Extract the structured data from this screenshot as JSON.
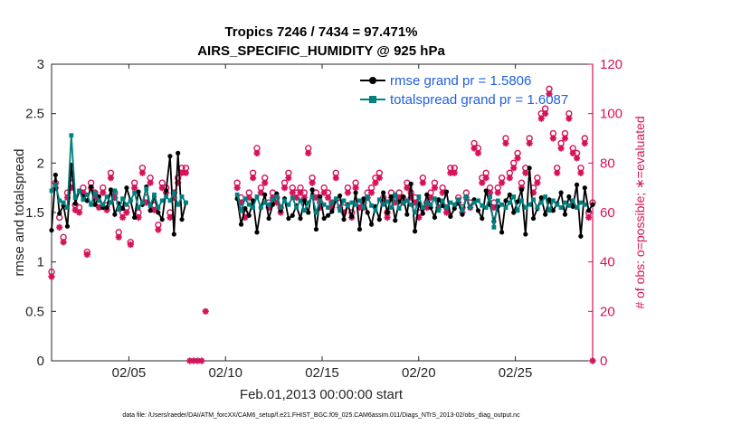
{
  "chart_data": {
    "type": "line",
    "title": "Tropics 7246 / 7434 = 97.471%",
    "subtitle": "AIRS_SPECIFIC_HUMIDITY @ 925 hPa",
    "xlabel": "Feb.01,2013 00:00:00 start",
    "ylabel": "rmse and totalspread",
    "y2label": "# of obs: o=possible; ∗=evaluated",
    "ylim": [
      0,
      3
    ],
    "y2lim": [
      0,
      120
    ],
    "xlim": [
      1,
      29
    ],
    "x_ticks": [
      5,
      10,
      15,
      20,
      25
    ],
    "x_tick_labels": [
      "02/05",
      "02/10",
      "02/15",
      "02/20",
      "02/25"
    ],
    "y_ticks": [
      "0",
      "0.5",
      "1",
      "1.5",
      "2",
      "2.5",
      "3"
    ],
    "y2_ticks": [
      "0",
      "20",
      "40",
      "60",
      "80",
      "100",
      "120"
    ],
    "legend_position": "top-right",
    "footer": "data file: /Users/raeder/DAI/ATM_forcXX/CAM6_setup/f.e21.FHIST_BGC.f09_025.CAM6assim.011/Diags_NTrS_2013-02/obs_diag_output.nc",
    "colors": {
      "rmse": "#000000",
      "spread": "#008080",
      "obs": "#d6125a",
      "legend_text": "#1f5fe0"
    },
    "series": [
      {
        "name": "rmse",
        "legend": "rmse grand pr = 1.5806",
        "values": [
          1.32,
          1.88,
          1.49,
          1.57,
          1.36,
          1.98,
          1.59,
          1.72,
          1.66,
          1.62,
          1.76,
          1.58,
          1.66,
          1.55,
          1.55,
          1.73,
          1.48,
          1.59,
          1.54,
          1.75,
          1.62,
          1.45,
          1.71,
          1.58,
          1.76,
          1.52,
          1.66,
          1.5,
          1.43,
          1.72,
          2.07,
          1.28,
          2.1,
          1.43,
          1.6,
          null,
          null,
          null,
          null,
          null,
          null,
          null,
          null,
          null,
          null,
          null,
          null,
          1.64,
          1.38,
          1.54,
          1.47,
          1.62,
          1.3,
          1.55,
          1.68,
          1.44,
          1.58,
          1.69,
          1.52,
          1.64,
          1.44,
          1.47,
          1.57,
          1.44,
          1.62,
          1.5,
          1.73,
          1.33,
          1.66,
          1.44,
          1.47,
          1.51,
          1.62,
          1.67,
          1.43,
          1.58,
          1.46,
          1.7,
          1.33,
          1.64,
          1.5,
          1.38,
          1.56,
          1.43,
          1.7,
          1.5,
          1.66,
          1.42,
          1.61,
          1.66,
          1.48,
          1.79,
          1.31,
          1.59,
          1.49,
          1.68,
          1.55,
          1.45,
          1.63,
          1.57,
          1.71,
          1.46,
          1.54,
          1.6,
          1.48,
          1.66,
          1.55,
          1.63,
          1.52,
          1.44,
          1.72,
          1.58,
          1.41,
          1.56,
          1.3,
          1.62,
          1.68,
          1.5,
          1.61,
          1.73,
          1.28,
          1.95,
          1.44,
          1.54,
          1.65,
          1.48,
          1.63,
          1.52,
          1.59,
          1.7,
          1.48,
          1.66,
          1.56,
          1.78,
          1.26,
          1.75,
          1.52,
          1.58
        ]
      },
      {
        "name": "totalspread",
        "legend": "totalspread grand pr = 1.6087",
        "values": [
          1.72,
          1.78,
          1.62,
          1.6,
          1.55,
          2.28,
          1.65,
          1.72,
          1.63,
          1.68,
          1.58,
          1.7,
          1.62,
          1.58,
          1.66,
          1.6,
          1.72,
          1.53,
          1.64,
          1.58,
          1.62,
          1.7,
          1.55,
          1.6,
          1.74,
          1.57,
          1.68,
          1.55,
          1.62,
          1.66,
          1.62,
          1.7,
          1.58,
          1.66,
          1.6,
          null,
          null,
          null,
          null,
          null,
          null,
          null,
          null,
          null,
          null,
          null,
          null,
          1.68,
          1.52,
          1.64,
          1.58,
          1.55,
          1.66,
          1.55,
          1.6,
          1.58,
          1.63,
          1.66,
          1.55,
          1.62,
          1.58,
          1.65,
          1.55,
          1.62,
          1.52,
          1.6,
          1.66,
          1.5,
          1.62,
          1.58,
          1.55,
          1.6,
          1.64,
          1.52,
          1.62,
          1.57,
          1.6,
          1.58,
          1.62,
          1.55,
          1.66,
          1.57,
          1.52,
          1.63,
          1.58,
          1.61,
          1.55,
          1.68,
          1.54,
          1.6,
          1.62,
          1.58,
          1.5,
          1.66,
          1.55,
          1.6,
          1.58,
          1.64,
          1.52,
          1.62,
          1.55,
          1.6,
          1.58,
          1.63,
          1.52,
          1.66,
          1.55,
          1.6,
          1.62,
          1.57,
          1.55,
          1.66,
          1.35,
          1.62,
          1.58,
          1.55,
          1.6,
          1.66,
          1.52,
          1.62,
          1.55,
          1.58,
          1.63,
          1.55,
          1.6,
          1.66,
          1.52,
          1.62,
          1.58,
          1.55,
          1.6,
          1.57,
          1.62,
          1.55,
          1.6,
          1.58
        ]
      },
      {
        "name": "obs possible",
        "marker": "o",
        "values": [
          36,
          72,
          58,
          50,
          68,
          72,
          63,
          62,
          70,
          44,
          72,
          68,
          64,
          70,
          63,
          76,
          68,
          52,
          60,
          62,
          48,
          72,
          60,
          78,
          66,
          74,
          63,
          55,
          72,
          70,
          60,
          68,
          74,
          78,
          78,
          null,
          null,
          null,
          null,
          null,
          null,
          null,
          null,
          null,
          null,
          null,
          null,
          72,
          66,
          60,
          68,
          76,
          86,
          70,
          74,
          64,
          68,
          66,
          62,
          72,
          76,
          70,
          68,
          70,
          68,
          86,
          74,
          68,
          64,
          70,
          68,
          64,
          76,
          64,
          62,
          70,
          60,
          72,
          64,
          64,
          68,
          70,
          74,
          76,
          66,
          60,
          68,
          66,
          68,
          66,
          72,
          68,
          66,
          60,
          74,
          64,
          68,
          72,
          64,
          70,
          62,
          78,
          78,
          66,
          62,
          68,
          64,
          88,
          86,
          74,
          76,
          70,
          64,
          70,
          74,
          90,
          76,
          80,
          84,
          72,
          78,
          90,
          70,
          74,
          100,
          102,
          110,
          92,
          78,
          88,
          92,
          100,
          86,
          84,
          78,
          90,
          60,
          64
        ]
      },
      {
        "name": "obs evaluated",
        "marker": "*",
        "values": [
          34,
          70,
          54,
          48,
          66,
          70,
          61,
          60,
          68,
          43,
          70,
          66,
          62,
          68,
          61,
          74,
          66,
          50,
          58,
          60,
          47,
          70,
          58,
          76,
          64,
          72,
          61,
          53,
          70,
          68,
          58,
          66,
          72,
          76,
          76,
          0,
          0,
          0,
          0,
          20,
          null,
          null,
          null,
          null,
          null,
          null,
          null,
          70,
          64,
          58,
          66,
          74,
          84,
          68,
          72,
          62,
          66,
          64,
          60,
          70,
          74,
          68,
          66,
          68,
          66,
          84,
          72,
          66,
          62,
          68,
          66,
          62,
          74,
          62,
          60,
          68,
          58,
          70,
          62,
          62,
          66,
          68,
          72,
          74,
          64,
          58,
          66,
          64,
          66,
          64,
          70,
          66,
          64,
          58,
          72,
          62,
          66,
          70,
          62,
          68,
          60,
          76,
          76,
          64,
          60,
          66,
          62,
          86,
          84,
          72,
          74,
          68,
          62,
          68,
          72,
          88,
          74,
          78,
          82,
          70,
          76,
          88,
          68,
          72,
          98,
          100,
          108,
          90,
          76,
          86,
          90,
          98,
          84,
          82,
          76,
          88,
          58,
          0
        ]
      }
    ]
  }
}
